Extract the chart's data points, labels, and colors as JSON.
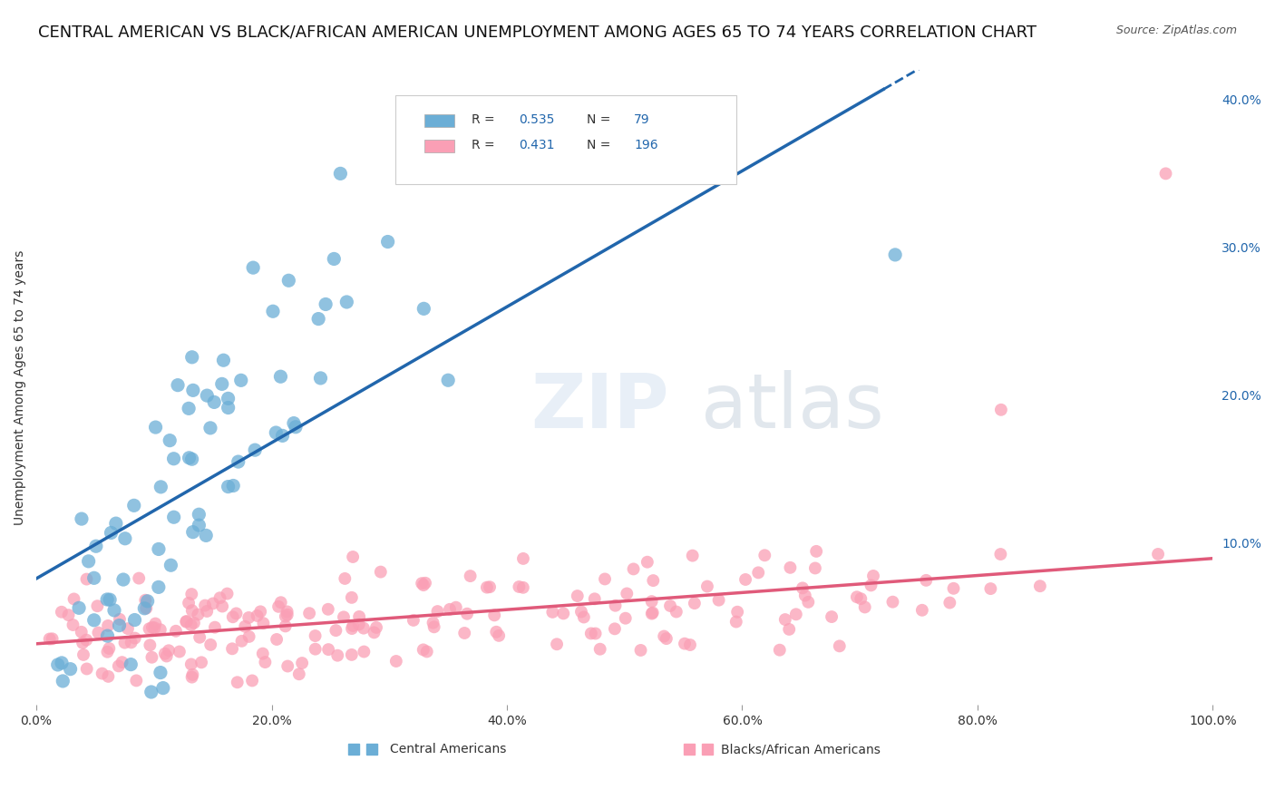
{
  "title": "CENTRAL AMERICAN VS BLACK/AFRICAN AMERICAN UNEMPLOYMENT AMONG AGES 65 TO 74 YEARS CORRELATION CHART",
  "source": "Source: ZipAtlas.com",
  "xlabel": "",
  "ylabel": "Unemployment Among Ages 65 to 74 years",
  "legend_labels": [
    "Central Americans",
    "Blacks/African Americans"
  ],
  "blue_R": 0.535,
  "blue_N": 79,
  "pink_R": 0.431,
  "pink_N": 196,
  "blue_color": "#6baed6",
  "pink_color": "#fa9fb5",
  "blue_line_color": "#2166ac",
  "pink_line_color": "#e05a7a",
  "watermark": "ZIPatlas",
  "xlim": [
    0,
    1.0
  ],
  "ylim": [
    -0.01,
    0.42
  ],
  "xticks": [
    0.0,
    0.2,
    0.4,
    0.6,
    0.8,
    1.0
  ],
  "yticks_right": [
    0.1,
    0.2,
    0.3,
    0.4
  ],
  "background_color": "#ffffff",
  "grid_color": "#cccccc",
  "title_fontsize": 13,
  "axis_fontsize": 11,
  "blue_seed": 42,
  "pink_seed": 99
}
